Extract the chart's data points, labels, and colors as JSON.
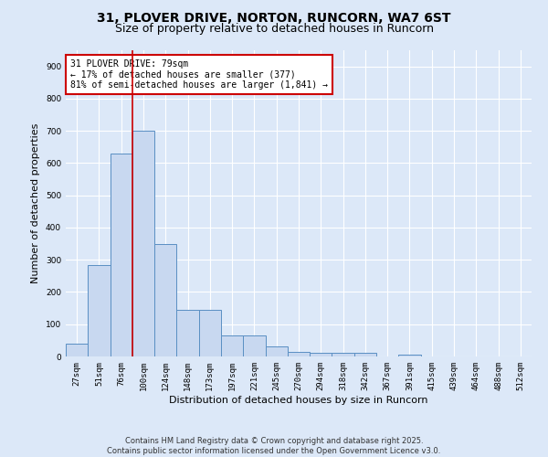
{
  "title1": "31, PLOVER DRIVE, NORTON, RUNCORN, WA7 6ST",
  "title2": "Size of property relative to detached houses in Runcorn",
  "xlabel": "Distribution of detached houses by size in Runcorn",
  "ylabel": "Number of detached properties",
  "categories": [
    "27sqm",
    "51sqm",
    "76sqm",
    "100sqm",
    "124sqm",
    "148sqm",
    "173sqm",
    "197sqm",
    "221sqm",
    "245sqm",
    "270sqm",
    "294sqm",
    "318sqm",
    "342sqm",
    "367sqm",
    "391sqm",
    "415sqm",
    "439sqm",
    "464sqm",
    "488sqm",
    "512sqm"
  ],
  "values": [
    40,
    285,
    630,
    700,
    350,
    145,
    145,
    65,
    65,
    30,
    15,
    10,
    10,
    10,
    0,
    5,
    0,
    0,
    0,
    0,
    0
  ],
  "bar_color": "#c8d8f0",
  "bar_edge_color": "#5a8fc3",
  "background_color": "#dce8f8",
  "grid_color": "#ffffff",
  "annotation_box_color": "#ffffff",
  "annotation_border_color": "#cc0000",
  "vline_color": "#cc0000",
  "vline_position": 2.5,
  "ylim": [
    0,
    950
  ],
  "yticks": [
    0,
    100,
    200,
    300,
    400,
    500,
    600,
    700,
    800,
    900
  ],
  "annotation_text": "31 PLOVER DRIVE: 79sqm\n← 17% of detached houses are smaller (377)\n81% of semi-detached houses are larger (1,841) →",
  "footer_text": "Contains HM Land Registry data © Crown copyright and database right 2025.\nContains public sector information licensed under the Open Government Licence v3.0.",
  "title1_fontsize": 10,
  "title2_fontsize": 9,
  "tick_fontsize": 6.5,
  "ylabel_fontsize": 8,
  "xlabel_fontsize": 8,
  "annotation_fontsize": 7,
  "footer_fontsize": 6
}
